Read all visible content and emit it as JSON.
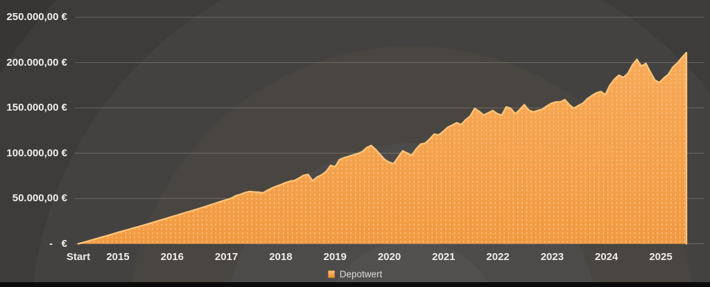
{
  "legend": {
    "label": "Depotwert",
    "swatch_color": "#f5a14f"
  },
  "y_axis": {
    "labels": [
      "250.000,00 €",
      "200.000,00 €",
      "150.000,00 €",
      "100.000,00 €",
      "50.000,00 €",
      "-   €"
    ],
    "values": [
      250000,
      200000,
      150000,
      100000,
      50000,
      0
    ]
  },
  "x_axis": {
    "labels": [
      "Start",
      "2015",
      "2016",
      "2017",
      "2018",
      "2019",
      "2020",
      "2021",
      "2022",
      "2023",
      "2024",
      "2025"
    ]
  },
  "chart_data": {
    "type": "area",
    "title": "",
    "xlabel": "",
    "ylabel": "",
    "x_axis_labels": [
      "Start",
      "2015",
      "2016",
      "2017",
      "2018",
      "2019",
      "2020",
      "2021",
      "2022",
      "2023",
      "2024",
      "2025"
    ],
    "ylim": [
      0,
      250000
    ],
    "y_tick_interval": 50000,
    "grid": true,
    "legend_position": "bottom",
    "number_format": "de-DE EUR",
    "series": [
      {
        "name": "Depotwert",
        "values": [
          0,
          1300,
          2700,
          4200,
          5600,
          7000,
          8400,
          9800,
          11300,
          12800,
          14200,
          15600,
          17000,
          18400,
          19800,
          21200,
          22700,
          24200,
          25700,
          27200,
          28700,
          30200,
          31700,
          33200,
          34700,
          36200,
          37700,
          39200,
          40800,
          42400,
          44000,
          45600,
          47200,
          48800,
          50400,
          53100,
          54500,
          56500,
          57600,
          57200,
          56900,
          56200,
          59000,
          61500,
          63500,
          65300,
          67500,
          69000,
          69800,
          72500,
          75500,
          76500,
          69500,
          73500,
          76000,
          79500,
          86500,
          85000,
          93000,
          95000,
          96500,
          98000,
          99500,
          101500,
          106000,
          108500,
          104000,
          98500,
          93000,
          90000,
          88300,
          95500,
          102500,
          100000,
          97500,
          104500,
          110000,
          111000,
          115500,
          121000,
          120000,
          124000,
          128500,
          131000,
          133500,
          131500,
          137000,
          141000,
          149500,
          146000,
          142000,
          144500,
          147000,
          143500,
          142000,
          151000,
          149500,
          143500,
          148000,
          153500,
          147500,
          145500,
          147000,
          148500,
          152000,
          155000,
          156500,
          156500,
          159000,
          153500,
          149500,
          152500,
          155000,
          160000,
          163500,
          166500,
          168000,
          164500,
          175000,
          181500,
          186000,
          183500,
          188000,
          197000,
          203500,
          196000,
          199000,
          189500,
          180500,
          178000,
          183000,
          187000,
          195000,
          199500,
          205500,
          211000
        ]
      }
    ],
    "colors": {
      "area_fill_top": "#f8aa58",
      "area_fill_bottom": "#f19a42",
      "area_pattern_dash": "#fdc88e",
      "area_top_highlight": "#fcc479",
      "grid_line": "rgba(205,198,186,0.30)",
      "background": "#454341",
      "text": "#efeeec"
    }
  }
}
